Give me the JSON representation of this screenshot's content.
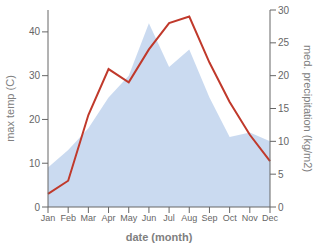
{
  "chart_data": {
    "type": "combo",
    "xlabel": "date (month)",
    "ylabel": "max temp (C)",
    "y2label": "med. precipitation (kg/m2)",
    "categories": [
      "Jan",
      "Feb",
      "Mar",
      "Apr",
      "May",
      "Jun",
      "Jul",
      "Aug",
      "Sep",
      "Oct",
      "Nov",
      "Dec"
    ],
    "series": [
      {
        "type": "area",
        "color": "#aec6e8",
        "values": [
          9,
          13,
          18,
          25,
          30,
          42,
          32,
          36,
          25,
          16,
          17,
          15
        ]
      },
      {
        "type": "line",
        "color": "#c0392b",
        "axis": "y2",
        "values": [
          2,
          4,
          14,
          21,
          19,
          24,
          28,
          29,
          22,
          16,
          11,
          7
        ]
      }
    ],
    "ylim": [
      0,
      45
    ],
    "yticks": [
      0,
      10,
      20,
      30,
      40
    ],
    "y2lim": [
      0,
      30
    ],
    "y2ticks": [
      0,
      5,
      10,
      15,
      20,
      25,
      30
    ],
    "grid": false
  }
}
